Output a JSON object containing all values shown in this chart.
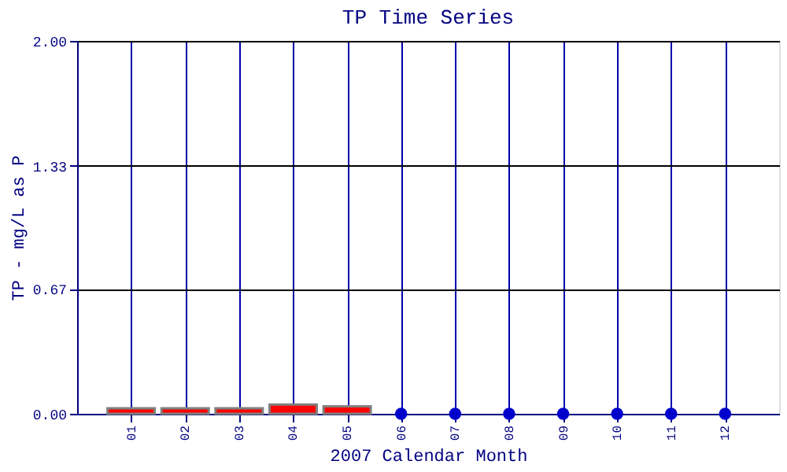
{
  "chart_data": {
    "type": "bar",
    "title": "TP Time Series",
    "xlabel": "2007 Calendar Month",
    "ylabel": "TP - mg/L as P",
    "categories": [
      "01",
      "02",
      "03",
      "04",
      "05",
      "06",
      "07",
      "08",
      "09",
      "10",
      "11",
      "12"
    ],
    "series": [
      {
        "color": "#ff0000",
        "values": [
          0.03,
          0.03,
          0.03,
          0.05,
          0.04,
          null,
          null,
          null,
          null,
          null,
          null,
          null
        ]
      },
      {
        "type": "scatter",
        "color": "#0000cc",
        "values": [
          null,
          null,
          null,
          null,
          null,
          0,
          0,
          0,
          0,
          0,
          0,
          0
        ]
      }
    ],
    "ylim": [
      0,
      2
    ],
    "yticks": [
      {
        "value": 0,
        "label": "0.00"
      },
      {
        "value": 0.67,
        "label": "0.67"
      },
      {
        "value": 1.33,
        "label": "1.33"
      },
      {
        "value": 2,
        "label": "2.00"
      }
    ],
    "grid": true,
    "marker": "circle"
  }
}
